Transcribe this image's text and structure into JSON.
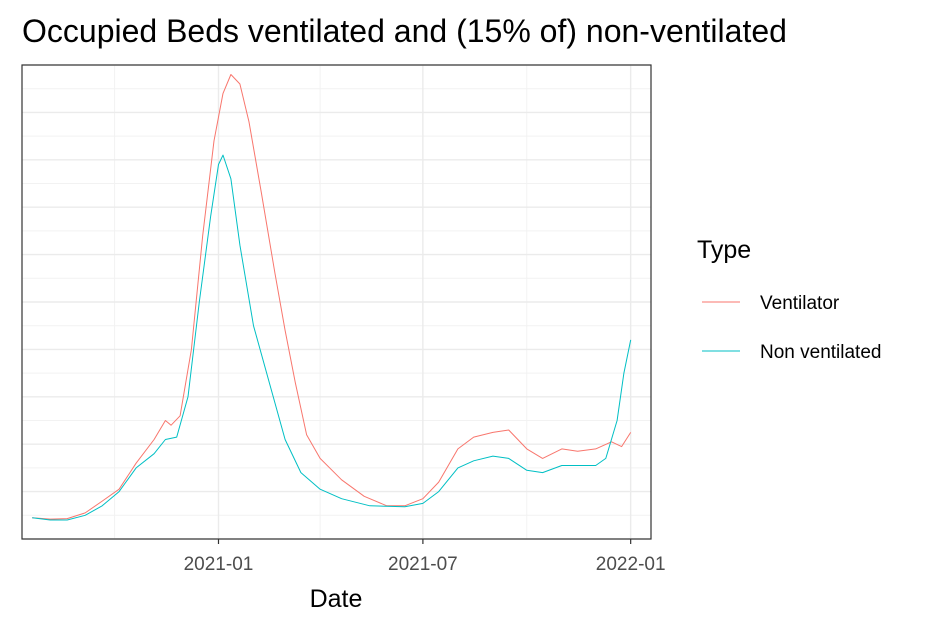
{
  "chart_data": {
    "type": "line",
    "title": "Occupied Beds ventilated and (15% of) non-ventilated",
    "xlabel": "Date",
    "ylabel": "",
    "x_ticks": [
      "2021-01",
      "2021-07",
      "2022-01"
    ],
    "xlim": [
      "2020-07-11",
      "2022-01-19"
    ],
    "ylim": [
      0,
      100
    ],
    "y_tick_labels_shown": false,
    "grid": true,
    "legend": {
      "title": "Type",
      "position": "right"
    },
    "series": [
      {
        "name": "Ventilator",
        "color": "#F8766D",
        "points": [
          [
            "2020-07-20",
            4.5
          ],
          [
            "2020-08-05",
            4.2
          ],
          [
            "2020-08-20",
            4.3
          ],
          [
            "2020-09-05",
            5.5
          ],
          [
            "2020-09-20",
            8.0
          ],
          [
            "2020-10-05",
            10.5
          ],
          [
            "2020-10-20",
            16.0
          ],
          [
            "2020-11-05",
            21.0
          ],
          [
            "2020-11-15",
            25.0
          ],
          [
            "2020-11-20",
            24.0
          ],
          [
            "2020-11-28",
            26.0
          ],
          [
            "2020-12-08",
            40.0
          ],
          [
            "2020-12-18",
            64.0
          ],
          [
            "2020-12-28",
            84.0
          ],
          [
            "2021-01-05",
            94.0
          ],
          [
            "2021-01-12",
            98.0
          ],
          [
            "2021-01-20",
            96.0
          ],
          [
            "2021-01-28",
            88.0
          ],
          [
            "2021-02-08",
            73.0
          ],
          [
            "2021-02-20",
            56.0
          ],
          [
            "2021-03-01",
            44.0
          ],
          [
            "2021-03-10",
            33.0
          ],
          [
            "2021-03-20",
            22.0
          ],
          [
            "2021-04-01",
            17.0
          ],
          [
            "2021-04-20",
            12.5
          ],
          [
            "2021-05-10",
            9.0
          ],
          [
            "2021-05-30",
            7.0
          ],
          [
            "2021-06-15",
            7.0
          ],
          [
            "2021-07-01",
            8.5
          ],
          [
            "2021-07-15",
            12.0
          ],
          [
            "2021-08-01",
            19.0
          ],
          [
            "2021-08-15",
            21.5
          ],
          [
            "2021-09-01",
            22.5
          ],
          [
            "2021-09-15",
            23.0
          ],
          [
            "2021-10-01",
            19.0
          ],
          [
            "2021-10-15",
            17.0
          ],
          [
            "2021-11-01",
            19.0
          ],
          [
            "2021-11-15",
            18.5
          ],
          [
            "2021-12-01",
            19.0
          ],
          [
            "2021-12-15",
            20.5
          ],
          [
            "2021-12-24",
            19.5
          ],
          [
            "2022-01-01",
            22.5
          ]
        ]
      },
      {
        "name": "Non ventilated",
        "color": "#00BFC4",
        "points": [
          [
            "2020-07-20",
            4.5
          ],
          [
            "2020-08-05",
            4.0
          ],
          [
            "2020-08-20",
            4.0
          ],
          [
            "2020-09-05",
            5.0
          ],
          [
            "2020-09-20",
            7.0
          ],
          [
            "2020-10-05",
            10.0
          ],
          [
            "2020-10-20",
            15.0
          ],
          [
            "2020-11-05",
            18.0
          ],
          [
            "2020-11-15",
            21.0
          ],
          [
            "2020-11-25",
            21.5
          ],
          [
            "2020-12-05",
            30.0
          ],
          [
            "2020-12-15",
            50.0
          ],
          [
            "2020-12-25",
            68.0
          ],
          [
            "2021-01-01",
            79.0
          ],
          [
            "2021-01-05",
            81.0
          ],
          [
            "2021-01-12",
            76.0
          ],
          [
            "2021-01-20",
            62.0
          ],
          [
            "2021-02-01",
            45.0
          ],
          [
            "2021-02-15",
            33.0
          ],
          [
            "2021-03-01",
            21.0
          ],
          [
            "2021-03-15",
            14.0
          ],
          [
            "2021-04-01",
            10.5
          ],
          [
            "2021-04-20",
            8.5
          ],
          [
            "2021-05-15",
            7.0
          ],
          [
            "2021-06-15",
            6.8
          ],
          [
            "2021-07-01",
            7.5
          ],
          [
            "2021-07-15",
            10.0
          ],
          [
            "2021-08-01",
            15.0
          ],
          [
            "2021-08-15",
            16.5
          ],
          [
            "2021-09-01",
            17.5
          ],
          [
            "2021-09-15",
            17.0
          ],
          [
            "2021-10-01",
            14.5
          ],
          [
            "2021-10-15",
            14.0
          ],
          [
            "2021-11-01",
            15.5
          ],
          [
            "2021-11-15",
            15.5
          ],
          [
            "2021-12-01",
            15.5
          ],
          [
            "2021-12-10",
            17.0
          ],
          [
            "2021-12-20",
            25.0
          ],
          [
            "2021-12-26",
            35.0
          ],
          [
            "2022-01-01",
            42.0
          ]
        ]
      }
    ]
  }
}
